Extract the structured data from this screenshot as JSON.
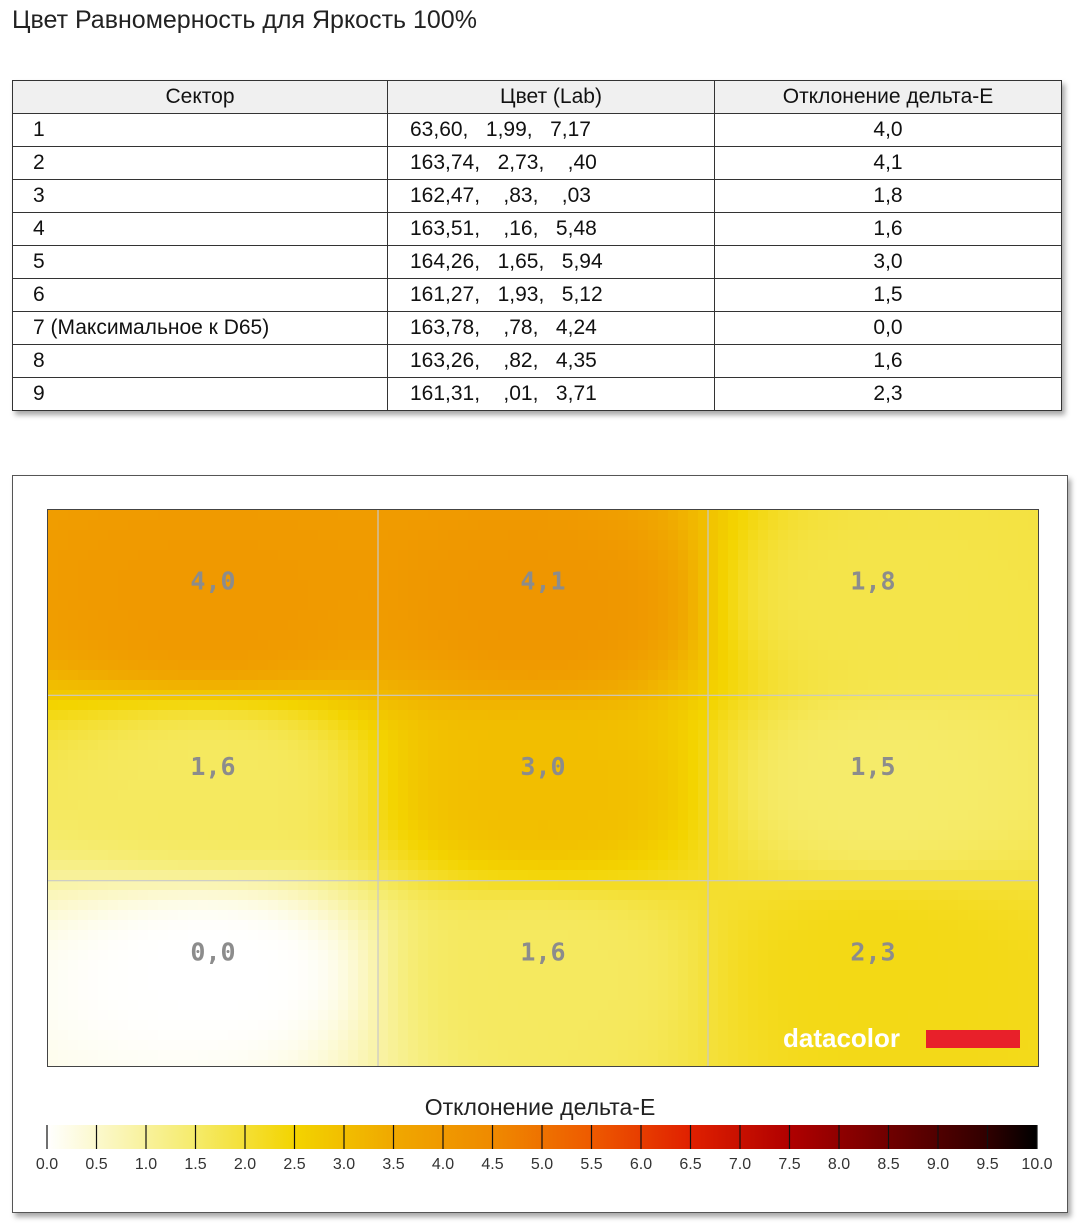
{
  "title": "Цвет Равномерность для Яркость 100%",
  "table": {
    "headers": [
      "Сектор",
      "Цвет (Lab)",
      "Отклонение дельта-E"
    ],
    "rows": [
      {
        "sector": "1",
        "lab": "63,60,   1,99,   7,17",
        "de": "4,0"
      },
      {
        "sector": "2",
        "lab": "163,74,   2,73,    ,40",
        "de": "4,1"
      },
      {
        "sector": "3",
        "lab": "162,47,    ,83,    ,03",
        "de": "1,8"
      },
      {
        "sector": "4",
        "lab": "163,51,    ,16,   5,48",
        "de": "1,6"
      },
      {
        "sector": "5",
        "lab": "164,26,   1,65,   5,94",
        "de": "3,0"
      },
      {
        "sector": "6",
        "lab": "161,27,   1,93,   5,12",
        "de": "1,5"
      },
      {
        "sector": "7 (Максимальное к D65)",
        "lab": "163,78,    ,78,   4,24",
        "de": "0,0"
      },
      {
        "sector": "8",
        "lab": "163,26,    ,82,   4,35",
        "de": "1,6"
      },
      {
        "sector": "9",
        "lab": "161,31,    ,01,   3,71",
        "de": "2,3"
      }
    ]
  },
  "chart_data": {
    "type": "heatmap",
    "grid": [
      [
        4.0,
        4.1,
        1.8
      ],
      [
        1.6,
        3.0,
        1.5
      ],
      [
        0.0,
        1.6,
        2.3
      ]
    ],
    "cell_labels": [
      [
        "4,0",
        "4,1",
        "1,8"
      ],
      [
        "1,6",
        "3,0",
        "1,5"
      ],
      [
        "0,0",
        "1,6",
        "2,3"
      ]
    ],
    "legend_title": "Отклонение дельта-E",
    "scale_range": [
      0,
      10
    ],
    "scale_ticks": [
      "0.0",
      "0.5",
      "1.0",
      "1.5",
      "2.0",
      "2.5",
      "3.0",
      "3.5",
      "4.0",
      "4.5",
      "5.0",
      "5.5",
      "6.0",
      "6.5",
      "7.0",
      "7.5",
      "8.0",
      "8.5",
      "9.0",
      "9.5",
      "10.0"
    ],
    "colorscale": [
      [
        0.0,
        "#ffffff"
      ],
      [
        1.5,
        "#f5eb6a"
      ],
      [
        2.5,
        "#f3d400"
      ],
      [
        3.5,
        "#f0a800"
      ],
      [
        4.5,
        "#ef8a00"
      ],
      [
        5.5,
        "#ee5a00"
      ],
      [
        6.5,
        "#e02000"
      ],
      [
        7.5,
        "#b00000"
      ],
      [
        8.5,
        "#700000"
      ],
      [
        9.5,
        "#300000"
      ],
      [
        10.0,
        "#000000"
      ]
    ],
    "watermark": "datacolor",
    "brand_colors": {
      "watermark_bar": "#e8202a"
    }
  }
}
